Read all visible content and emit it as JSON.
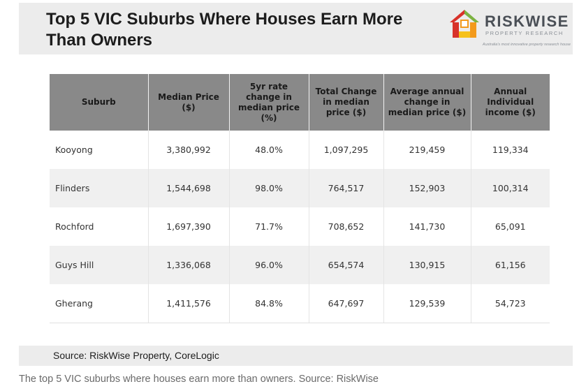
{
  "title": "Top 5 VIC Suburbs Where Houses Earn More Than Owners",
  "logo": {
    "name": "RISKWISE",
    "subtitle": "PROPERTY RESEARCH",
    "tagline": "Australia's most innovative property research house",
    "colors": {
      "red": "#d8322a",
      "orange": "#f39a1c",
      "yellow": "#f6c11a",
      "green": "#7cb342"
    }
  },
  "chart_data": {
    "type": "table",
    "columns": [
      "Suburb",
      "Median Price ($)",
      "5yr rate change in median price (%)",
      "Total Change in median price ($)",
      "Average annual change in median price ($)",
      "Annual Individual income ($)"
    ],
    "rows": [
      [
        "Kooyong",
        "3,380,992",
        "48.0%",
        "1,097,295",
        "219,459",
        "119,334"
      ],
      [
        "Flinders",
        "1,544,698",
        "98.0%",
        "764,517",
        "152,903",
        "100,314"
      ],
      [
        "Rochford",
        "1,697,390",
        "71.7%",
        "708,652",
        "141,730",
        "65,091"
      ],
      [
        "Guys Hill",
        "1,336,068",
        "96.0%",
        "654,574",
        "130,915",
        "61,156"
      ],
      [
        "Gherang",
        "1,411,576",
        "84.8%",
        "647,697",
        "129,539",
        "54,723"
      ]
    ]
  },
  "source": "Source: RiskWise Property, CoreLogic",
  "caption": "The top 5 VIC suburbs where houses earn more than owners. Source: RiskWise",
  "colors": {
    "header_bg": "#898989",
    "banner_bg": "#ececec",
    "row_alt": "#f0f0f0"
  }
}
